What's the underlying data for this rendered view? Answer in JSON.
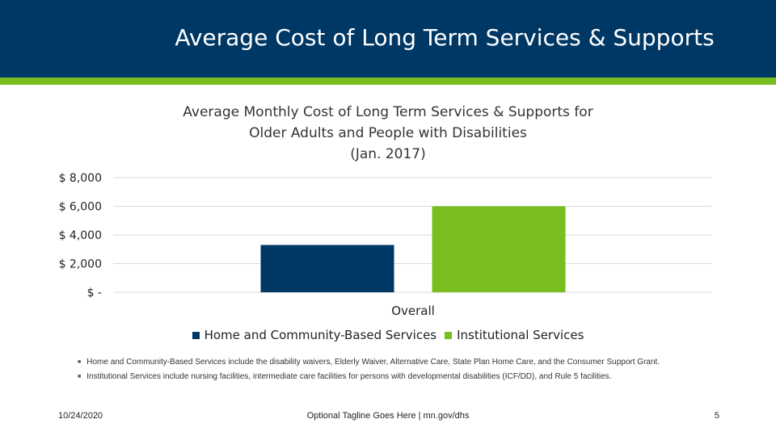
{
  "slide": {
    "title": "Average Cost of Long Term Services & Supports"
  },
  "colors": {
    "header_bg": "#003865",
    "accent": "#78be20",
    "series_home": "#003865",
    "series_institutional": "#78be20",
    "gridline": "#d9d9d9"
  },
  "chart_data": {
    "type": "bar",
    "title_lines": [
      "Average Monthly Cost of Long Term Services & Supports for",
      "Older Adults and People with Disabilities",
      "(Jan. 2017)"
    ],
    "categories": [
      "Overall"
    ],
    "series": [
      {
        "name": "Home and Community-Based Services",
        "values": [
          3300
        ],
        "color": "#003865"
      },
      {
        "name": "Institutional Services",
        "values": [
          6000
        ],
        "color": "#78be20"
      }
    ],
    "y_ticks": [
      {
        "value": 8000,
        "label": "$ 8,000"
      },
      {
        "value": 6000,
        "label": "$ 6,000"
      },
      {
        "value": 4000,
        "label": "$ 4,000"
      },
      {
        "value": 2000,
        "label": "$ 2,000"
      },
      {
        "value": 0,
        "label": "$ -"
      }
    ],
    "ylim": [
      0,
      8000
    ],
    "xlabel": "",
    "ylabel": "",
    "grid": true,
    "legend_position": "bottom"
  },
  "notes": [
    "Home and Community-Based Services include the disability waivers, Elderly Waiver, Alternative Care, State Plan Home Care, and the Consumer Support Grant.",
    "Institutional Services include nursing facilities, intermediate care facilities for persons with developmental disabilities (ICF/DD), and Rule 5 facilities."
  ],
  "footer": {
    "date": "10/24/2020",
    "tagline": "Optional Tagline Goes Here | mn.gov/dhs",
    "page_number": "5"
  }
}
